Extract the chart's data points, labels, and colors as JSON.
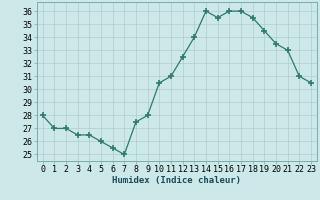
{
  "x": [
    0,
    1,
    2,
    3,
    4,
    5,
    6,
    7,
    8,
    9,
    10,
    11,
    12,
    13,
    14,
    15,
    16,
    17,
    18,
    19,
    20,
    21,
    22,
    23
  ],
  "y": [
    28,
    27,
    27,
    26.5,
    26.5,
    26,
    25.5,
    25,
    27.5,
    28,
    30.5,
    31,
    32.5,
    34,
    36,
    35.5,
    36,
    36,
    35.5,
    34.5,
    33.5,
    33,
    31,
    30.5
  ],
  "xlabel": "Humidex (Indice chaleur)",
  "ylim": [
    24.5,
    36.7
  ],
  "xlim": [
    -0.5,
    23.5
  ],
  "yticks": [
    25,
    26,
    27,
    28,
    29,
    30,
    31,
    32,
    33,
    34,
    35,
    36
  ],
  "xtick_labels": [
    "0",
    "1",
    "2",
    "3",
    "4",
    "5",
    "6",
    "7",
    "8",
    "9",
    "10",
    "11",
    "12",
    "13",
    "14",
    "15",
    "16",
    "17",
    "18",
    "19",
    "20",
    "21",
    "22",
    "23"
  ],
  "line_color": "#2d7a6b",
  "marker": "+",
  "marker_size": 4,
  "bg_color": "#cce8e8",
  "grid_color": "#b0cccc",
  "label_fontsize": 6.5,
  "tick_fontsize": 6.0,
  "spine_color": "#7aadad"
}
